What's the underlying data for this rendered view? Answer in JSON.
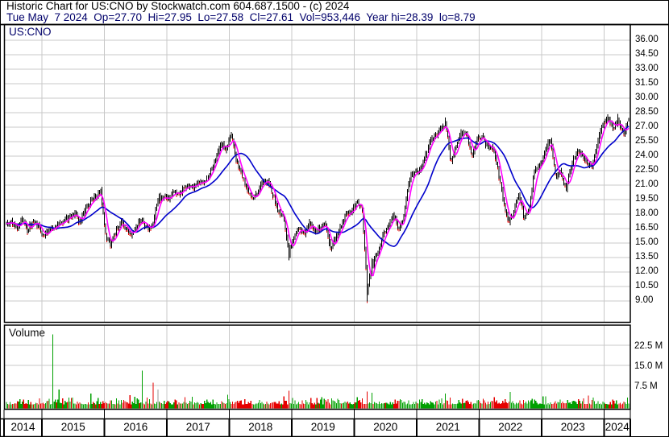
{
  "header": {
    "title": "Historic Chart for US:CNO by Stockwatch.com 604.687.1500 - (c) 2024",
    "info": "Tue May  7 2024  Op=27.70  Hi=27.95  Lo=27.58  Cl=27.61  Vol=953,446  Year hi=28.39  lo=8.79"
  },
  "chart_labels": {
    "symbol": "US:CNO",
    "volume": "Volume"
  },
  "price_axis": {
    "labels": [
      "36.00",
      "34.50",
      "33.00",
      "31.50",
      "30.00",
      "28.50",
      "27.00",
      "25.50",
      "24.00",
      "22.50",
      "21.00",
      "19.50",
      "18.00",
      "16.50",
      "15.00",
      "13.50",
      "12.00",
      "10.50",
      "9.00"
    ]
  },
  "volume_axis": {
    "labels": [
      "22.5 M",
      "15.0 M",
      "7.5 M"
    ]
  },
  "x_axis": {
    "years": [
      "2014",
      "2015",
      "2016",
      "2017",
      "2018",
      "2019",
      "2020",
      "2021",
      "2022",
      "2023",
      "2024"
    ]
  },
  "colors": {
    "up_green": "#00a000",
    "down_red": "#e60000",
    "neutral_gray": "#9a9a9a",
    "candle_black": "#000000",
    "ma_fast": "#ff00ff",
    "ma_slow": "#0000cc",
    "grid": "#c8c8c8",
    "header_info_navy": "#00006a"
  },
  "chart_data": [
    {
      "type": "candlestick",
      "title": "US:CNO daily price with two moving averages",
      "x_start": "2014-06",
      "x_end": "2024-05",
      "x_step": "1 month (closes estimated from chart)",
      "monthly_closes": [
        16.9,
        17.1,
        16.6,
        17.4,
        16.3,
        17.2,
        16.9,
        15.6,
        16.3,
        16.6,
        17.0,
        17.3,
        17.6,
        18.0,
        17.2,
        18.5,
        19.2,
        19.8,
        20.3,
        15.6,
        14.9,
        16.3,
        17.4,
        16.2,
        15.8,
        16.9,
        17.4,
        16.4,
        16.9,
        19.6,
        19.8,
        19.5,
        20.4,
        20.0,
        20.7,
        21.0,
        20.8,
        21.4,
        21.2,
        22.4,
        23.6,
        25.3,
        24.6,
        26.2,
        23.8,
        22.0,
        20.5,
        19.4,
        20.3,
        21.5,
        21.3,
        20.0,
        18.2,
        17.6,
        13.8,
        15.8,
        16.6,
        15.9,
        17.0,
        16.2,
        16.6,
        17.0,
        14.3,
        15.6,
        16.8,
        18.1,
        18.2,
        19.3,
        18.6,
        9.6,
        12.8,
        14.0,
        15.8,
        16.6,
        17.9,
        16.4,
        17.8,
        21.6,
        22.3,
        22.6,
        23.8,
        25.6,
        26.1,
        26.9,
        27.3,
        23.4,
        25.1,
        26.3,
        26.4,
        23.9,
        25.7,
        25.9,
        24.9,
        25.1,
        22.6,
        19.5,
        16.9,
        18.3,
        20.1,
        17.5,
        18.4,
        22.5,
        23.0,
        24.6,
        25.8,
        22.0,
        22.4,
        20.4,
        23.0,
        24.4,
        24.3,
        23.4,
        22.8,
        25.4,
        27.2,
        27.9,
        26.9,
        27.6,
        26.2,
        27.61
      ],
      "key_points": [
        {
          "date": "2018-01",
          "high": 26.5
        },
        {
          "date": "2018-12",
          "low": 13.2
        },
        {
          "date": "2020-03",
          "low": 8.79
        },
        {
          "date": "2021-06",
          "high": 28.0
        },
        {
          "date": "2024-03",
          "high": 28.39
        },
        {
          "date": "2024-05",
          "close": 27.61,
          "high": 27.95,
          "low": 27.58
        }
      ],
      "moving_averages": [
        {
          "name": "fast-ma",
          "color": "#ff00ff",
          "approx_window_trading_days": 30
        },
        {
          "name": "slow-ma",
          "color": "#0000cc",
          "approx_window_trading_days": 130
        }
      ],
      "ylim": [
        6.75,
        37.5
      ],
      "y_tick_step": 1.5,
      "grid": true
    },
    {
      "type": "bar",
      "title": "Volume",
      "unit": "M shares",
      "y_ticks": [
        7.5,
        15.0,
        22.5
      ],
      "typical_daily_range_M": [
        0.4,
        3.5
      ],
      "spikes": [
        {
          "date": "2015-03",
          "value_M": 26.5,
          "color": "green"
        },
        {
          "date": "2015-04",
          "value_M": 6.0,
          "color": "green"
        },
        {
          "date": "2016-08",
          "value_M": 13.0,
          "color": "green"
        },
        {
          "date": "2016-10",
          "value_M": 8.5,
          "color": "red"
        },
        {
          "date": "2016-11",
          "value_M": 6.0,
          "color": "gray"
        },
        {
          "date": "2018-12",
          "value_M": 5.5,
          "color": "red"
        },
        {
          "date": "2020-03",
          "value_M": 5.2,
          "color": "red"
        },
        {
          "date": "2020-04",
          "value_M": 4.8,
          "color": "green"
        },
        {
          "date": "2021-06",
          "value_M": 4.5,
          "color": "green"
        }
      ]
    }
  ]
}
